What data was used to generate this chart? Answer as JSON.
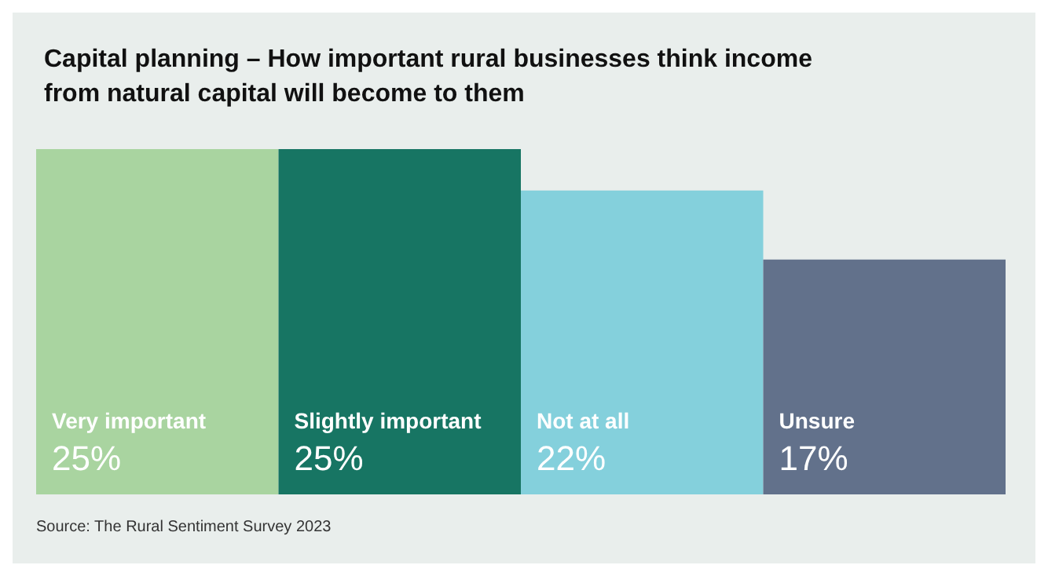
{
  "chart_data": {
    "type": "bar",
    "title": "Capital planning – How important rural businesses think income\nfrom natural capital will become to them",
    "categories": [
      "Very important",
      "Slightly important",
      "Not at all",
      "Unsure"
    ],
    "values": [
      25,
      25,
      22,
      17
    ],
    "value_labels": [
      "25%",
      "25%",
      "22%",
      "17%"
    ],
    "colors": [
      "#a9d4a0",
      "#177563",
      "#84d0dc",
      "#62718b"
    ],
    "annotations": [
      "Source: The Rural Sentiment Survey 2023"
    ]
  }
}
